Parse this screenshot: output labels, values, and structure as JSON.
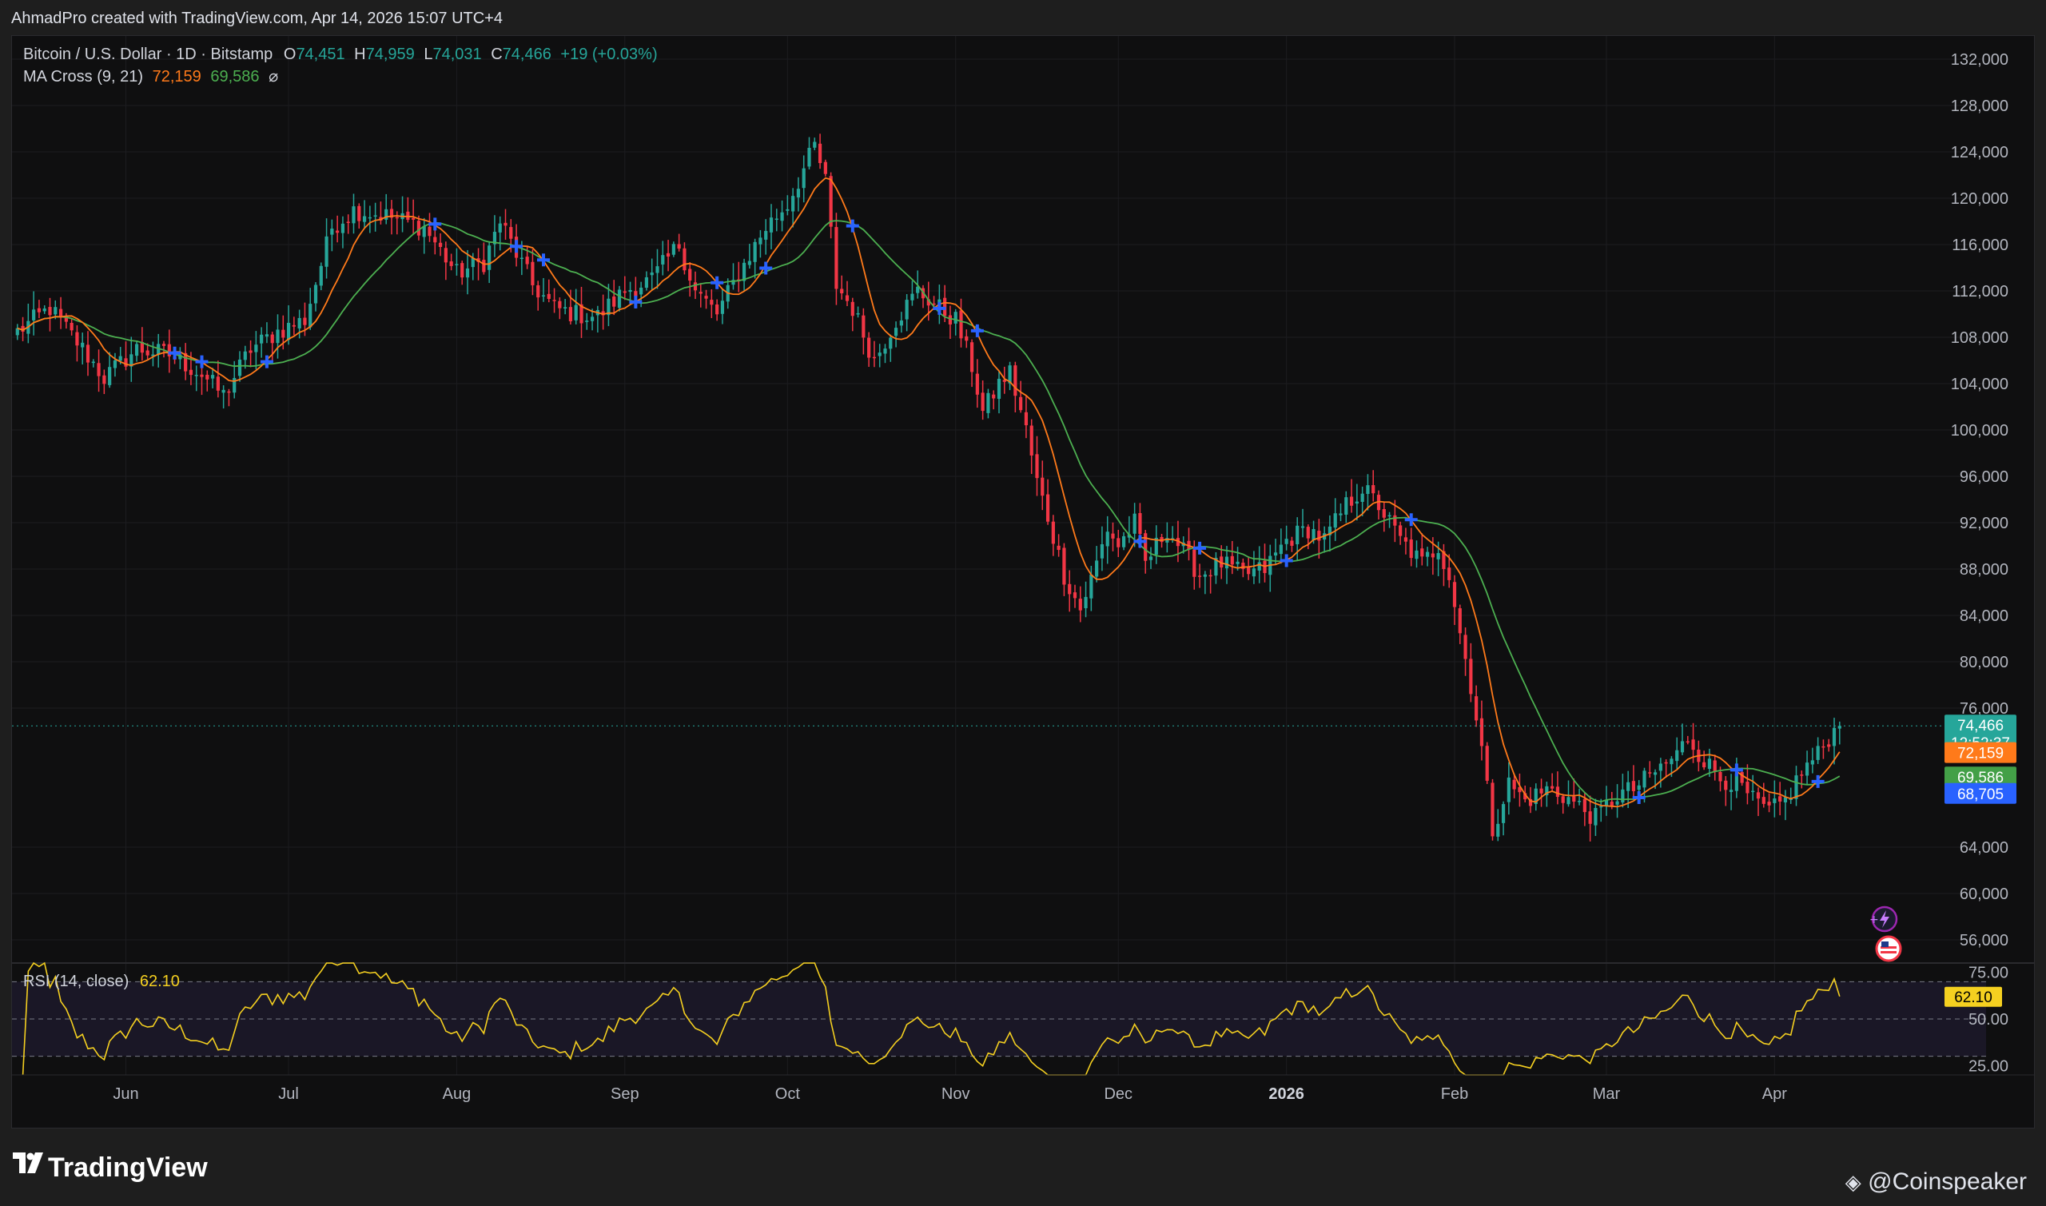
{
  "header": {
    "credit_line": "AhmadPro created with TradingView.com, Apr 14, 2026 15:07 UTC+4"
  },
  "legend": {
    "symbol": "Bitcoin / U.S. Dollar · 1D · Bitstamp",
    "o_label": "O",
    "o_value": "74,451",
    "h_label": "H",
    "h_value": "74,959",
    "l_label": "L",
    "l_value": "74,031",
    "c_label": "C",
    "c_value": "74,466",
    "change": "+19 (+0.03%)",
    "ma_label": "MA Cross (9, 21)",
    "ma_fast": "72,159",
    "ma_slow": "69,586",
    "ma_extra": "⌀",
    "rsi_label": "RSI (14, close)",
    "rsi_value": "62.10"
  },
  "colors": {
    "up": "#26a69a",
    "down": "#f23645",
    "ma_fast": "#ff7a1a",
    "ma_slow": "#4caf50",
    "cross": "#2962ff",
    "rsi": "#f5d020",
    "background": "#0f0f10"
  },
  "price_badges": {
    "last": "74,466",
    "countdown": "12:52:37",
    "ma_fast": "72,159",
    "ma_slow": "69,586",
    "cross": "68,705",
    "rsi": "62.10"
  },
  "footer": {
    "brand": "TradingView",
    "watermark": "@Coinspeaker"
  },
  "icons": [
    "bolt-icon",
    "us-flag-icon",
    "tradingview-logo-icon",
    "coinspeaker-logo-icon"
  ],
  "chart_data": {
    "type": "candlestick",
    "title": "Bitcoin / U.S. Dollar · 1D · Bitstamp",
    "y_ticks": [
      "132,000",
      "128,000",
      "124,000",
      "120,000",
      "116,000",
      "112,000",
      "108,000",
      "104,000",
      "100,000",
      "96,000",
      "92,000",
      "88,000",
      "84,000",
      "80,000",
      "76,000",
      "64,000",
      "60,000",
      "56,000"
    ],
    "ylim": [
      54000,
      134000
    ],
    "x_ticks": [
      "Jun",
      "Jul",
      "Aug",
      "Sep",
      "Oct",
      "Nov",
      "Dec",
      "2026",
      "Feb",
      "Mar",
      "Apr"
    ],
    "x_tick_days": [
      20,
      50,
      81,
      112,
      142,
      173,
      203,
      234,
      265,
      293,
      324
    ],
    "grid": true,
    "series": [
      {
        "name": "MA Cross (9, 21)",
        "kind": "ma_fast"
      },
      {
        "name": "MA Cross (9, 21)",
        "kind": "ma_slow"
      }
    ],
    "price_anchors": [
      [
        0,
        108500
      ],
      [
        6,
        110500
      ],
      [
        12,
        107000
      ],
      [
        16,
        104500
      ],
      [
        22,
        107000
      ],
      [
        28,
        106500
      ],
      [
        34,
        104800
      ],
      [
        38,
        103000
      ],
      [
        43,
        107000
      ],
      [
        48,
        108500
      ],
      [
        53,
        109500
      ],
      [
        58,
        117500
      ],
      [
        62,
        119000
      ],
      [
        68,
        118500
      ],
      [
        75,
        117500
      ],
      [
        81,
        113500
      ],
      [
        86,
        114500
      ],
      [
        89,
        118000
      ],
      [
        95,
        112500
      ],
      [
        99,
        110500
      ],
      [
        103,
        110000
      ],
      [
        107,
        109800
      ],
      [
        112,
        112000
      ],
      [
        117,
        113000
      ],
      [
        122,
        116000
      ],
      [
        125,
        112000
      ],
      [
        129,
        110000
      ],
      [
        133,
        113500
      ],
      [
        138,
        117500
      ],
      [
        142,
        119500
      ],
      [
        145,
        122500
      ],
      [
        147,
        124500
      ],
      [
        149,
        121500
      ],
      [
        151,
        112500
      ],
      [
        154,
        110500
      ],
      [
        158,
        106000
      ],
      [
        162,
        109500
      ],
      [
        166,
        112000
      ],
      [
        170,
        110500
      ],
      [
        173,
        109500
      ],
      [
        176,
        105500
      ],
      [
        178,
        101500
      ],
      [
        181,
        104000
      ],
      [
        183,
        105000
      ],
      [
        186,
        100000
      ],
      [
        188,
        95500
      ],
      [
        190,
        92500
      ],
      [
        193,
        87500
      ],
      [
        196,
        84500
      ],
      [
        199,
        88500
      ],
      [
        201,
        91500
      ],
      [
        203,
        90000
      ],
      [
        206,
        92000
      ],
      [
        208,
        88500
      ],
      [
        212,
        91500
      ],
      [
        215,
        89500
      ],
      [
        218,
        87500
      ],
      [
        222,
        88500
      ],
      [
        226,
        87500
      ],
      [
        230,
        88000
      ],
      [
        234,
        90500
      ],
      [
        238,
        91500
      ],
      [
        241,
        90500
      ],
      [
        245,
        93500
      ],
      [
        248,
        95000
      ],
      [
        251,
        93500
      ],
      [
        255,
        90500
      ],
      [
        259,
        88500
      ],
      [
        262,
        90000
      ],
      [
        264,
        87500
      ],
      [
        266,
        82500
      ],
      [
        268,
        78000
      ],
      [
        270,
        72500
      ],
      [
        272,
        65500
      ],
      [
        275,
        69500
      ],
      [
        278,
        68000
      ],
      [
        282,
        69000
      ],
      [
        285,
        68500
      ],
      [
        288,
        67500
      ],
      [
        291,
        66500
      ],
      [
        295,
        68500
      ],
      [
        298,
        69000
      ],
      [
        302,
        70500
      ],
      [
        306,
        72000
      ],
      [
        308,
        73500
      ],
      [
        311,
        71500
      ],
      [
        314,
        70000
      ],
      [
        317,
        69500
      ],
      [
        320,
        68000
      ],
      [
        323,
        67000
      ],
      [
        326,
        68000
      ],
      [
        329,
        70500
      ],
      [
        332,
        72000
      ],
      [
        334,
        73500
      ],
      [
        336,
        74466
      ]
    ],
    "rsi": {
      "name": "RSI (14, close)",
      "ylim": [
        20,
        80
      ],
      "bands": [
        70,
        50,
        30
      ],
      "y_ticks": [
        "75.00",
        "50.00",
        "25.00"
      ],
      "last": 62.1
    }
  }
}
